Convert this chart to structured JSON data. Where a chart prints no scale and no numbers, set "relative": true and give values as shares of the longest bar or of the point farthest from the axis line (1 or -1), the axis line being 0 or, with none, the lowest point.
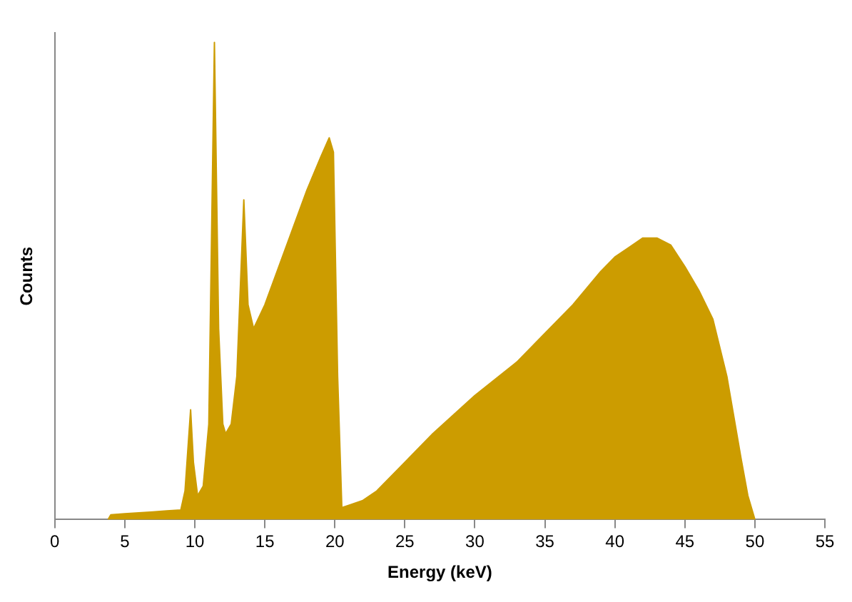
{
  "chart_data": {
    "type": "area",
    "xlabel": "Energy (keV)",
    "ylabel": "Counts",
    "relative": true,
    "color": "#cc9c00",
    "grid": false,
    "legend": false,
    "x": [
      3.8,
      4.0,
      5,
      6,
      7,
      8,
      9.0,
      9.3,
      9.7,
      9.9,
      10.2,
      10.6,
      11.0,
      11.4,
      11.7,
      12.0,
      12.2,
      12.6,
      13.0,
      13.5,
      13.8,
      14.2,
      15,
      16,
      17,
      18,
      19,
      19.6,
      19.9,
      20.2,
      20.5,
      21,
      22,
      23,
      25,
      27,
      30,
      33,
      35,
      37,
      39,
      40,
      41,
      42,
      43,
      44,
      45,
      46,
      47,
      48,
      49,
      49.5,
      50
    ],
    "values": [
      0,
      0.01,
      0.012,
      0.014,
      0.016,
      0.018,
      0.02,
      0.06,
      0.23,
      0.12,
      0.05,
      0.07,
      0.2,
      1.0,
      0.4,
      0.2,
      0.18,
      0.2,
      0.3,
      0.67,
      0.45,
      0.4,
      0.45,
      0.53,
      0.61,
      0.69,
      0.76,
      0.8,
      0.77,
      0.3,
      0.025,
      0.03,
      0.04,
      0.06,
      0.12,
      0.18,
      0.26,
      0.33,
      0.39,
      0.45,
      0.52,
      0.55,
      0.57,
      0.59,
      0.59,
      0.575,
      0.53,
      0.48,
      0.42,
      0.3,
      0.13,
      0.05,
      0
    ],
    "xlim": [
      0,
      55
    ],
    "xticks": [
      0,
      5,
      10,
      15,
      20,
      25,
      30,
      35,
      40,
      45,
      50,
      55
    ]
  }
}
